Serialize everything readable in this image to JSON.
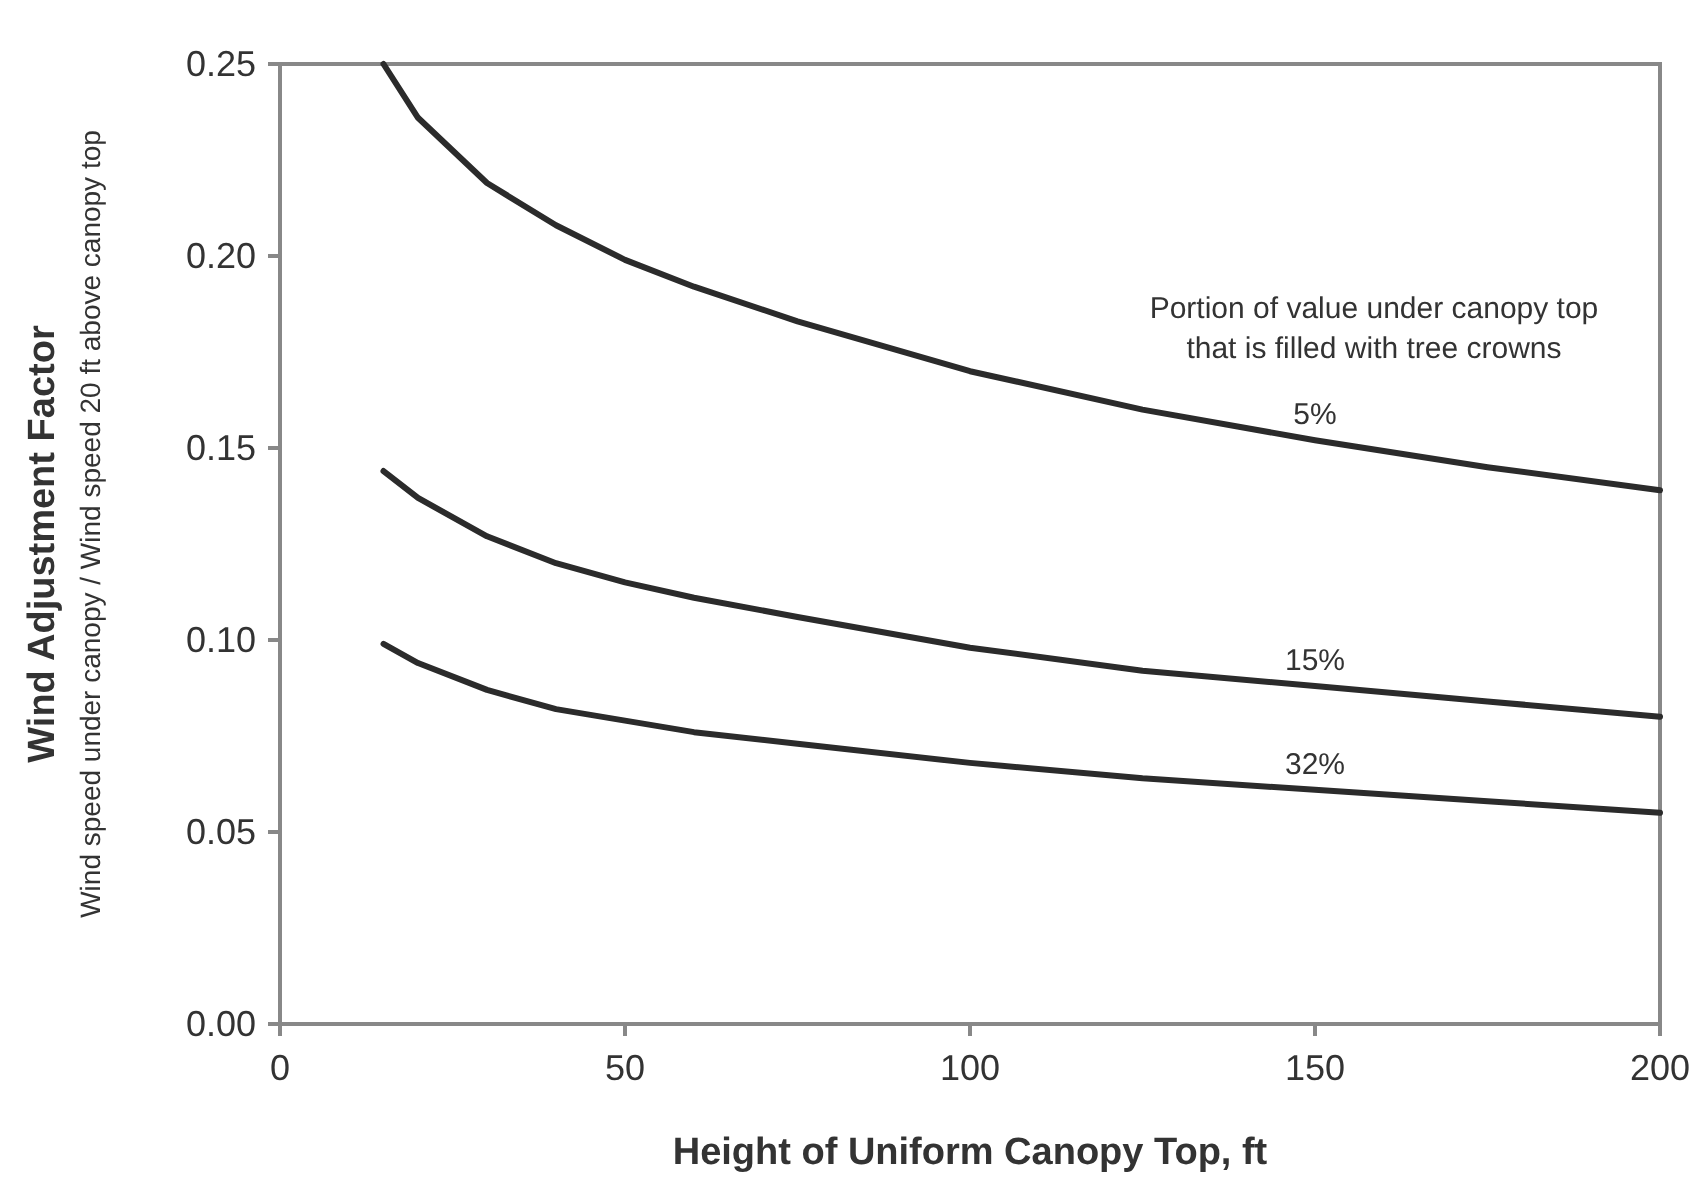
{
  "chart_data": {
    "type": "line",
    "xlabel": "Height of Uniform Canopy Top, ft",
    "ylabel": "Wind Adjustment Factor\nWind speed under canopy / Wind speed 20 ft above canopy top",
    "x": [
      15,
      20,
      30,
      40,
      50,
      60,
      75,
      100,
      125,
      150,
      175,
      200
    ],
    "series": [
      {
        "name": "5%",
        "color": "#2b2b2b",
        "values": [
          0.25,
          0.236,
          0.219,
          0.208,
          0.199,
          0.192,
          0.183,
          0.17,
          0.16,
          0.152,
          0.145,
          0.139
        ]
      },
      {
        "name": "15%",
        "color": "#2b2b2b",
        "values": [
          0.144,
          0.137,
          0.127,
          0.12,
          0.115,
          0.111,
          0.106,
          0.098,
          0.092,
          0.088,
          0.084,
          0.08
        ]
      },
      {
        "name": "32%",
        "color": "#2b2b2b",
        "values": [
          0.099,
          0.094,
          0.087,
          0.082,
          0.079,
          0.076,
          0.073,
          0.068,
          0.064,
          0.061,
          0.058,
          0.055
        ]
      }
    ],
    "annotations": [
      "Portion of value under canopy top\nthat is filled with tree crowns"
    ],
    "xlim": [
      0,
      200
    ],
    "xticks": [
      0,
      50,
      100,
      150,
      200
    ],
    "ylim": [
      0,
      0.25
    ],
    "yticks": [
      {
        "value": 0,
        "label": "0.00"
      },
      {
        "value": 0.05,
        "label": "0.05"
      },
      {
        "value": 0.1,
        "label": "0.10"
      },
      {
        "value": 0.15,
        "label": "0.15"
      },
      {
        "value": 0.2,
        "label": "0.20"
      },
      {
        "value": 0.25,
        "label": "0.25"
      }
    ],
    "grid": false,
    "marker": "none",
    "line_style": "solid"
  }
}
